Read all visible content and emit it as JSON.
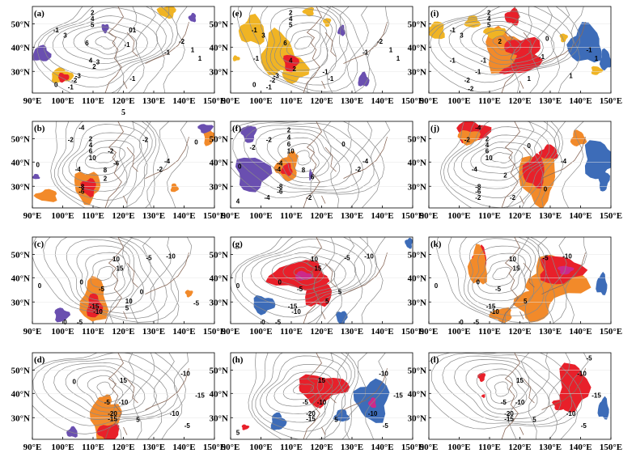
{
  "figure": {
    "lon_ticks": [
      "90°E",
      "100°E",
      "110°E",
      "120°E",
      "130°E",
      "140°E",
      "150°E"
    ],
    "lat_ticks": [
      "30°N",
      "40°N",
      "50°N"
    ],
    "stray_label": "5",
    "colors": {
      "red": "#e8202a",
      "orange": "#f28a2a",
      "gold": "#f0b424",
      "blue": "#3d6cb8",
      "purple": "#6a4fb0",
      "magenta": "#cc2a8a",
      "contour": "#8a8a8a",
      "coast": "#8b6a5a"
    },
    "panels": [
      {
        "label": "(a)",
        "contour_labels": [
          "2",
          "4",
          "5",
          "-1",
          "3",
          "1",
          "6",
          "4",
          "3",
          "2",
          "-3",
          "-2",
          "0",
          "-1",
          "-1",
          "0",
          "-2",
          "1",
          "-1",
          "-1",
          "1"
        ]
      },
      {
        "label": "(b)",
        "contour_labels": [
          "-4",
          "2",
          "4",
          "6",
          "10",
          "-2",
          "-2",
          "-2",
          "-4",
          "8",
          "-6",
          "2",
          "-8",
          "-6",
          "0",
          "-4",
          "-2",
          "0"
        ]
      },
      {
        "label": "(c)",
        "contour_labels": [
          "0",
          "0",
          "10",
          "15",
          "-5",
          "-10",
          "-5",
          "-15",
          "-10",
          "10",
          "5",
          "0",
          "-5",
          "-5",
          "0"
        ]
      },
      {
        "label": "(d)",
        "contour_labels": [
          "0",
          "15",
          "-10",
          "-5",
          "-10",
          "-20",
          "-15",
          "5",
          "-15",
          "-10",
          "-5"
        ]
      },
      {
        "label": "(e)",
        "contour_labels": [
          "2",
          "4",
          "5",
          "-1",
          "3",
          "-1",
          "6",
          "4",
          "2",
          "-3",
          "-2",
          "0",
          "-1",
          "-1",
          "-2",
          "1",
          "-1",
          "-1",
          "1"
        ]
      },
      {
        "label": "(f)",
        "contour_labels": [
          "-2",
          "2",
          "4",
          "6",
          "10",
          "-2",
          "-4",
          "0",
          "-4",
          "8",
          "6",
          "-8",
          "-6",
          "-4",
          "-2",
          "0",
          "-4",
          "-2",
          "4"
        ]
      },
      {
        "label": "(g)",
        "contour_labels": [
          "0",
          "0",
          "10",
          "15",
          "-5",
          "-10",
          "-5",
          "-15",
          "-10",
          "5",
          "0",
          "-5",
          "5"
        ]
      },
      {
        "label": "(h)",
        "contour_labels": [
          "-10",
          "15",
          "-5",
          "-10",
          "-20",
          "-15",
          "5",
          "-15",
          "-10",
          "-5",
          "5"
        ]
      },
      {
        "label": "(i)",
        "contour_labels": [
          "2",
          "4",
          "5",
          "-1",
          "3",
          "2",
          "0",
          "-1",
          "-1",
          "1",
          "-2",
          "-1",
          "1",
          "-2",
          "-1",
          "-1",
          "1"
        ]
      },
      {
        "label": "(j)",
        "contour_labels": [
          "-4",
          "2",
          "4",
          "6",
          "10",
          "0",
          "-2",
          "-4",
          "-8",
          "-6",
          "-2",
          "-4",
          "0",
          "2",
          "-2"
        ]
      },
      {
        "label": "(k)",
        "contour_labels": [
          "0",
          "0",
          "10",
          "15",
          "-5",
          "-10",
          "-5",
          "-15",
          "-10",
          "5",
          "0",
          "-5"
        ]
      },
      {
        "label": "(l)",
        "contour_labels": [
          "-5",
          "-10",
          "15",
          "-5",
          "-10",
          "-20",
          "-15",
          "5",
          "-15",
          "-10",
          "-5"
        ]
      }
    ]
  }
}
